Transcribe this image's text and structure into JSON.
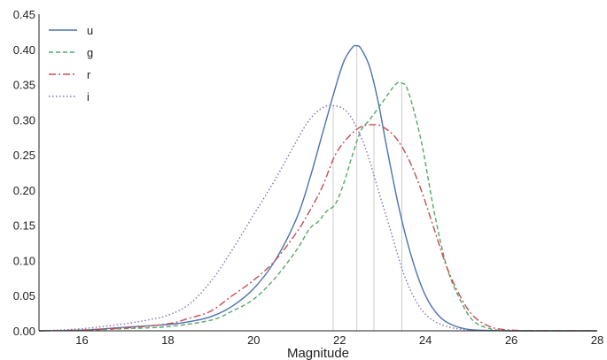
{
  "chart_data": {
    "type": "line",
    "title": "",
    "xlabel": "Magnitude",
    "ylabel": "",
    "xlim": [
      15,
      28
    ],
    "ylim": [
      0,
      0.45
    ],
    "xticks": [
      16,
      18,
      20,
      22,
      24,
      26,
      28
    ],
    "yticks": [
      "0.00",
      "0.05",
      "0.10",
      "0.15",
      "0.20",
      "0.25",
      "0.30",
      "0.35",
      "0.40",
      "0.45"
    ],
    "grid": false,
    "legend_position": "top-left",
    "peak_markers": [
      21.85,
      22.4,
      22.8,
      23.45
    ],
    "series": [
      {
        "name": "u",
        "color": "#4c72b0",
        "dash": "solid",
        "x": [
          15,
          16,
          17,
          18,
          18.5,
          19,
          19.5,
          20,
          20.5,
          21,
          21.3,
          21.6,
          21.9,
          22.1,
          22.3,
          22.4,
          22.5,
          22.7,
          22.9,
          23.1,
          23.4,
          23.7,
          24,
          24.3,
          24.6,
          25,
          25.5,
          26,
          27,
          28
        ],
        "y": [
          0,
          0.001,
          0.005,
          0.009,
          0.013,
          0.02,
          0.035,
          0.06,
          0.1,
          0.16,
          0.215,
          0.28,
          0.345,
          0.383,
          0.403,
          0.405,
          0.401,
          0.375,
          0.325,
          0.26,
          0.17,
          0.1,
          0.05,
          0.022,
          0.009,
          0.002,
          0.0005,
          0,
          0,
          0
        ]
      },
      {
        "name": "g",
        "color": "#55a868",
        "dash": "5,3",
        "x": [
          15,
          16,
          17,
          18,
          19,
          19.5,
          20,
          20.5,
          21,
          21.3,
          21.5,
          21.7,
          21.9,
          22.1,
          22.3,
          22.5,
          22.7,
          23,
          23.3,
          23.45,
          23.6,
          23.9,
          24.2,
          24.5,
          24.8,
          25.1,
          25.5,
          26,
          27,
          28
        ],
        "y": [
          0,
          0.001,
          0.003,
          0.006,
          0.015,
          0.028,
          0.045,
          0.075,
          0.115,
          0.145,
          0.155,
          0.17,
          0.18,
          0.21,
          0.25,
          0.285,
          0.3,
          0.325,
          0.35,
          0.352,
          0.34,
          0.27,
          0.17,
          0.09,
          0.045,
          0.015,
          0.003,
          0,
          0,
          0
        ]
      },
      {
        "name": "r",
        "color": "#c44e52",
        "dash": "8,3,2,3",
        "x": [
          15,
          16,
          17,
          18,
          18.5,
          19,
          19.5,
          20,
          20.5,
          21,
          21.3,
          21.6,
          21.9,
          22.2,
          22.5,
          22.8,
          23,
          23.3,
          23.6,
          23.9,
          24.2,
          24.5,
          24.8,
          25.1,
          25.5,
          26,
          27,
          28
        ],
        "y": [
          0,
          0.001,
          0.004,
          0.01,
          0.018,
          0.028,
          0.05,
          0.072,
          0.1,
          0.14,
          0.17,
          0.205,
          0.25,
          0.275,
          0.29,
          0.293,
          0.29,
          0.275,
          0.245,
          0.2,
          0.145,
          0.09,
          0.05,
          0.022,
          0.006,
          0.001,
          0,
          0
        ]
      },
      {
        "name": "i",
        "color": "#8172b2",
        "dash": "1.5,2.5",
        "x": [
          15,
          16,
          17,
          17.5,
          18,
          18.5,
          19,
          19.5,
          20,
          20.5,
          21,
          21.3,
          21.6,
          21.85,
          22.1,
          22.3,
          22.6,
          22.9,
          23.2,
          23.5,
          23.8,
          24.1,
          24.5,
          25,
          25.5,
          26,
          27,
          28
        ],
        "y": [
          0,
          0.003,
          0.01,
          0.015,
          0.022,
          0.038,
          0.07,
          0.115,
          0.165,
          0.215,
          0.27,
          0.3,
          0.317,
          0.32,
          0.315,
          0.3,
          0.26,
          0.2,
          0.14,
          0.08,
          0.04,
          0.018,
          0.006,
          0.001,
          0,
          0,
          0,
          0
        ]
      }
    ]
  }
}
